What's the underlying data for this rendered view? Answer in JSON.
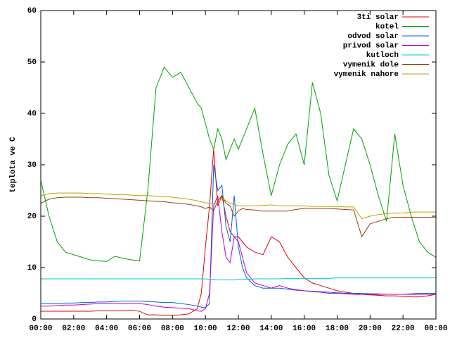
{
  "chart_data": {
    "type": "line",
    "ylabel": "teplota ve C",
    "x": [
      0,
      0.5,
      1,
      1.5,
      2,
      2.5,
      3,
      3.5,
      4,
      4.5,
      5,
      5.5,
      6,
      6.5,
      7,
      7.5,
      8,
      8.5,
      9,
      9.5,
      9.75,
      10,
      10.25,
      10.5,
      10.75,
      11,
      11.25,
      11.5,
      11.75,
      12,
      12.25,
      12.5,
      13,
      13.5,
      14,
      14.5,
      15,
      15.5,
      16,
      16.5,
      17,
      17.5,
      18,
      18.5,
      19,
      19.5,
      20,
      20.5,
      21,
      21.5,
      22,
      22.5,
      23,
      23.5,
      24
    ],
    "xlim": [
      0,
      24
    ],
    "xticks": [
      {
        "value": 0,
        "label": "00:00"
      },
      {
        "value": 2,
        "label": "02:00"
      },
      {
        "value": 4,
        "label": "04:00"
      },
      {
        "value": 6,
        "label": "06:00"
      },
      {
        "value": 8,
        "label": "08:00"
      },
      {
        "value": 10,
        "label": "10:00"
      },
      {
        "value": 12,
        "label": "12:00"
      },
      {
        "value": 14,
        "label": "14:00"
      },
      {
        "value": 16,
        "label": "16:00"
      },
      {
        "value": 18,
        "label": "18:00"
      },
      {
        "value": 20,
        "label": "20:00"
      },
      {
        "value": 22,
        "label": "22:00"
      },
      {
        "value": 24,
        "label": "00:00"
      }
    ],
    "ylim": [
      0,
      60
    ],
    "yticks": [
      0,
      10,
      20,
      30,
      40,
      50,
      60
    ],
    "legend": "top-right",
    "series": [
      {
        "name": "3ti solar",
        "color": "#e00000",
        "values": [
          1.5,
          1.5,
          1.5,
          1.5,
          1.5,
          1.5,
          1.5,
          1.6,
          1.6,
          1.6,
          1.6,
          1.7,
          1.5,
          0.8,
          0.8,
          0.7,
          0.7,
          0.8,
          1.0,
          2,
          5,
          14,
          22,
          33,
          22,
          24,
          20,
          17,
          16,
          16,
          15,
          14,
          13,
          12.5,
          16,
          15,
          12,
          10,
          8,
          7,
          6.5,
          6,
          5.5,
          5.2,
          5,
          4.8,
          4.7,
          4.6,
          4.5,
          4.5,
          4.4,
          4.3,
          4.3,
          4.5,
          4.8
        ]
      },
      {
        "name": "kotel",
        "color": "#00a000",
        "values": [
          27,
          20,
          15,
          13,
          12.5,
          12,
          11.5,
          11.3,
          11.2,
          12.2,
          11.8,
          11.5,
          11.3,
          25,
          45,
          49,
          47,
          48,
          45,
          42,
          41,
          38,
          35,
          33,
          37,
          35,
          31,
          33,
          35,
          33,
          35,
          37,
          41,
          32,
          24,
          30,
          34,
          36,
          30,
          46,
          40,
          28,
          23,
          30,
          37,
          35,
          30,
          24,
          19,
          36,
          26,
          20,
          15,
          13,
          12
        ]
      },
      {
        "name": "odvod solar",
        "color": "#0060e0",
        "values": [
          3,
          3,
          3,
          3.1,
          3.1,
          3.2,
          3.2,
          3.3,
          3.3,
          3.4,
          3.5,
          3.5,
          3.5,
          3.4,
          3.3,
          3.2,
          3.2,
          3,
          2.8,
          2.5,
          2.3,
          2.2,
          3,
          30,
          25,
          26,
          18,
          15,
          24,
          14,
          10,
          8,
          6.5,
          6,
          6,
          6,
          5.8,
          5.6,
          5.5,
          5.4,
          5.3,
          5.2,
          5.1,
          5,
          5,
          5,
          4.9,
          4.9,
          4.8,
          4.8,
          4.8,
          4.9,
          5,
          5,
          5
        ]
      },
      {
        "name": "privod solar",
        "color": "#c000c0",
        "values": [
          2.5,
          2.5,
          2.6,
          2.7,
          2.7,
          2.8,
          2.9,
          3,
          3,
          3,
          3,
          3,
          3,
          2.8,
          2.5,
          2.3,
          2.2,
          2.1,
          2,
          1.6,
          1.5,
          2,
          5,
          22,
          24,
          17,
          12,
          11,
          16,
          15,
          12,
          9,
          7,
          6.5,
          6,
          6.5,
          6,
          5.7,
          5.5,
          5.3,
          5.2,
          5,
          5,
          4.9,
          4.8,
          4.8,
          4.8,
          4.8,
          4.8,
          4.8,
          4.8,
          4.8,
          4.8,
          4.8,
          4.8
        ]
      },
      {
        "name": "kutloch",
        "color": "#00c8c8",
        "values": [
          7.8,
          7.8,
          7.8,
          7.8,
          7.8,
          7.8,
          7.8,
          7.8,
          7.8,
          7.8,
          7.8,
          7.8,
          7.8,
          7.8,
          7.8,
          7.8,
          7.8,
          7.8,
          7.8,
          7.8,
          7.8,
          7.8,
          7.7,
          7.7,
          7.6,
          7.6,
          7.6,
          7.6,
          7.6,
          7.7,
          7.7,
          7.7,
          7.8,
          7.8,
          7.8,
          7.8,
          7.9,
          7.9,
          7.9,
          7.9,
          7.9,
          7.9,
          8,
          8,
          8,
          8,
          8,
          8,
          8,
          8,
          8,
          8,
          8,
          8,
          8
        ]
      },
      {
        "name": "vymenik dole",
        "color": "#a03c00",
        "values": [
          22.5,
          23.3,
          23.6,
          23.7,
          23.7,
          23.7,
          23.6,
          23.6,
          23.5,
          23.4,
          23.3,
          23.2,
          23.1,
          23,
          22.9,
          22.8,
          22.6,
          22.5,
          22.3,
          22,
          21.8,
          21.5,
          21.8,
          21,
          23,
          24,
          22.5,
          22,
          20,
          21,
          21.5,
          21.3,
          21.2,
          21,
          21,
          21,
          21,
          21.3,
          21.5,
          21.5,
          21.5,
          21.5,
          21.4,
          21.3,
          21.2,
          16,
          18.5,
          19,
          19.5,
          19.8,
          19.8,
          19.8,
          19.8,
          19.8,
          19.8
        ]
      },
      {
        "name": "vymenik nahore",
        "color": "#c0a000",
        "values": [
          24,
          24.4,
          24.5,
          24.5,
          24.5,
          24.5,
          24.4,
          24.4,
          24.3,
          24.2,
          24.2,
          24.1,
          24,
          24,
          23.9,
          23.8,
          23.7,
          23.5,
          23.3,
          23,
          22.8,
          22.6,
          22.5,
          22.3,
          22.5,
          23.5,
          23,
          22.5,
          22.3,
          22,
          22,
          22,
          22,
          22.1,
          22.2,
          22,
          22,
          22,
          22,
          21.9,
          21.9,
          21.9,
          21.9,
          21.8,
          21.8,
          19.5,
          20,
          20.3,
          20.5,
          20.6,
          20.6,
          20.8,
          20.8,
          20.8,
          20.8
        ]
      }
    ]
  }
}
